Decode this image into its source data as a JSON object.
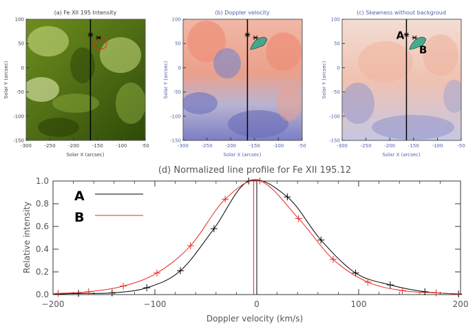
{
  "panels": [
    {
      "title": "(a) Fe XII 195 Intensity",
      "xlabel": "Solar X (arcsec)",
      "ylabel": "Solar Y (arcsec)",
      "xlim": [
        -300,
        -50
      ],
      "ylim": [
        -150,
        100
      ],
      "xticks": [
        -300,
        -250,
        -200,
        -150,
        -100,
        -50
      ],
      "yticks": [
        100,
        50,
        0,
        -50,
        -100,
        -150
      ],
      "label_color": "#404040",
      "colormap": "green",
      "slit_x": -165,
      "star_markers": [
        {
          "x": -165,
          "y": 68
        },
        {
          "x": -148,
          "y": 62
        }
      ],
      "point_labels": []
    },
    {
      "title": "(b) Doppler velocity",
      "xlabel": "Solar X (arcsec)",
      "ylabel": "Solar Y (arcsec)",
      "xlim": [
        -300,
        -50
      ],
      "ylim": [
        -150,
        100
      ],
      "xticks": [
        -300,
        -250,
        -200,
        -150,
        -100,
        -50
      ],
      "yticks": [
        100,
        50,
        0,
        -50,
        -100,
        -150
      ],
      "label_color": "#5060a8",
      "colormap": "redblue",
      "slit_x": -165,
      "star_markers": [
        {
          "x": -165,
          "y": 68
        },
        {
          "x": -148,
          "y": 62
        }
      ],
      "point_labels": []
    },
    {
      "title": "(c) Skewness without backgroud",
      "xlabel": "Solar X (arcsec)",
      "ylabel": "Solar Y (arcsec)",
      "xlim": [
        -300,
        -50
      ],
      "ylim": [
        -150,
        100
      ],
      "xticks": [
        -300,
        -250,
        -200,
        -150,
        -100,
        -50
      ],
      "yticks": [
        100,
        50,
        0,
        -50,
        -100,
        -150
      ],
      "label_color": "#5060a8",
      "colormap": "skew",
      "slit_x": -165,
      "star_markers": [
        {
          "x": -165,
          "y": 68
        },
        {
          "x": -148,
          "y": 62
        }
      ],
      "point_labels": [
        {
          "text": "A",
          "x": -178,
          "y": 68
        },
        {
          "text": "B",
          "x": -130,
          "y": 38
        }
      ]
    }
  ],
  "chart_data": {
    "type": "line",
    "title": "(d) Normalized line profile for Fe XII 195.12",
    "xlabel": "Doppler velocity (km/s)",
    "ylabel": "Relative intensity",
    "xlim": [
      -200,
      200
    ],
    "ylim": [
      0,
      1.0
    ],
    "xticks": [
      -200,
      -100,
      0,
      100,
      200
    ],
    "yticks": [
      0.0,
      0.2,
      0.4,
      0.6,
      0.8,
      1.0
    ],
    "xtick_labels": [
      "−200",
      "−100",
      "0",
      "100",
      "200"
    ],
    "ytick_labels": [
      "0.0",
      "0.2",
      "0.4",
      "0.6",
      "0.8",
      "1.0"
    ],
    "legend": [
      {
        "label": "A",
        "color": "#000000"
      },
      {
        "label": "B",
        "color": "#e8251f"
      }
    ],
    "series": [
      {
        "name": "A",
        "color": "#000000",
        "peak_velocity": 0,
        "points": [
          {
            "x": -175,
            "y": 0.01
          },
          {
            "x": -142,
            "y": 0.015
          },
          {
            "x": -108,
            "y": 0.06
          },
          {
            "x": -75,
            "y": 0.21
          },
          {
            "x": -42,
            "y": 0.58
          },
          {
            "x": -8,
            "y": 1.0
          },
          {
            "x": 30,
            "y": 0.86
          },
          {
            "x": 63,
            "y": 0.48
          },
          {
            "x": 97,
            "y": 0.19
          },
          {
            "x": 131,
            "y": 0.085
          },
          {
            "x": 165,
            "y": 0.025
          },
          {
            "x": 198,
            "y": 0.005
          }
        ]
      },
      {
        "name": "B",
        "color": "#e8251f",
        "peak_velocity": -3,
        "points": [
          {
            "x": -195,
            "y": 0.01
          },
          {
            "x": -165,
            "y": 0.025
          },
          {
            "x": -131,
            "y": 0.075
          },
          {
            "x": -98,
            "y": 0.19
          },
          {
            "x": -65,
            "y": 0.43
          },
          {
            "x": -31,
            "y": 0.84
          },
          {
            "x": 3,
            "y": 1.0
          },
          {
            "x": 41,
            "y": 0.67
          },
          {
            "x": 75,
            "y": 0.31
          },
          {
            "x": 109,
            "y": 0.11
          },
          {
            "x": 143,
            "y": 0.035
          },
          {
            "x": 176,
            "y": 0.015
          }
        ]
      }
    ]
  }
}
